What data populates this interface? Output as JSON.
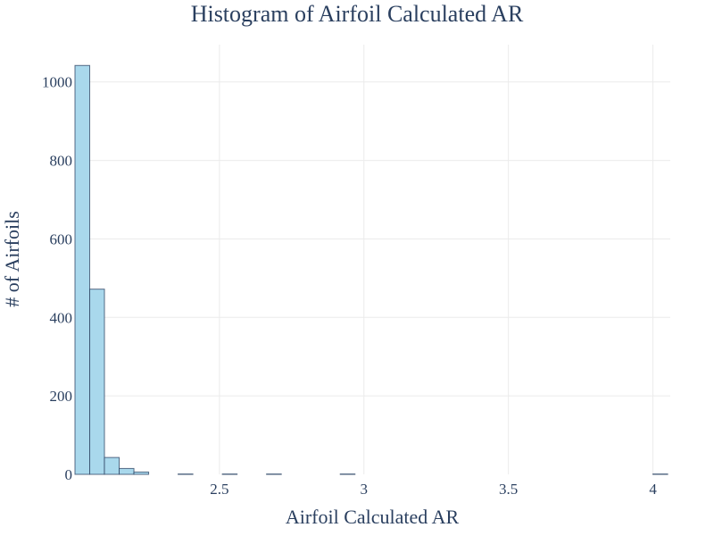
{
  "chart_data": {
    "type": "bar",
    "title": "Histogram of Airfoil Calculated AR",
    "xlabel": "Airfoil Calculated AR",
    "ylabel": "# of Airfoils",
    "xlim": [
      2.0,
      4.06
    ],
    "ylim": [
      0,
      1095
    ],
    "grid": true,
    "bar_color": "#a9d8ec",
    "bin_width": 0.051,
    "x_ticks": [
      {
        "value": 2.5,
        "label": "2.5"
      },
      {
        "value": 3,
        "label": "3"
      },
      {
        "value": 3.5,
        "label": "3.5"
      },
      {
        "value": 4,
        "label": "4"
      }
    ],
    "y_ticks": [
      {
        "value": 0,
        "label": "0"
      },
      {
        "value": 200,
        "label": "200"
      },
      {
        "value": 400,
        "label": "400"
      },
      {
        "value": 600,
        "label": "600"
      },
      {
        "value": 800,
        "label": "800"
      },
      {
        "value": 1000,
        "label": "1000"
      }
    ],
    "bins": [
      {
        "x0": 2.0,
        "x1": 2.051,
        "count": 1042
      },
      {
        "x0": 2.051,
        "x1": 2.102,
        "count": 472
      },
      {
        "x0": 2.102,
        "x1": 2.153,
        "count": 43
      },
      {
        "x0": 2.153,
        "x1": 2.204,
        "count": 15
      },
      {
        "x0": 2.204,
        "x1": 2.255,
        "count": 6
      },
      {
        "x0": 2.357,
        "x1": 2.408,
        "count": 1
      },
      {
        "x0": 2.51,
        "x1": 2.561,
        "count": 1
      },
      {
        "x0": 2.663,
        "x1": 2.714,
        "count": 1
      },
      {
        "x0": 2.918,
        "x1": 2.969,
        "count": 1
      },
      {
        "x0": 4.0,
        "x1": 4.051,
        "count": 1
      }
    ]
  }
}
